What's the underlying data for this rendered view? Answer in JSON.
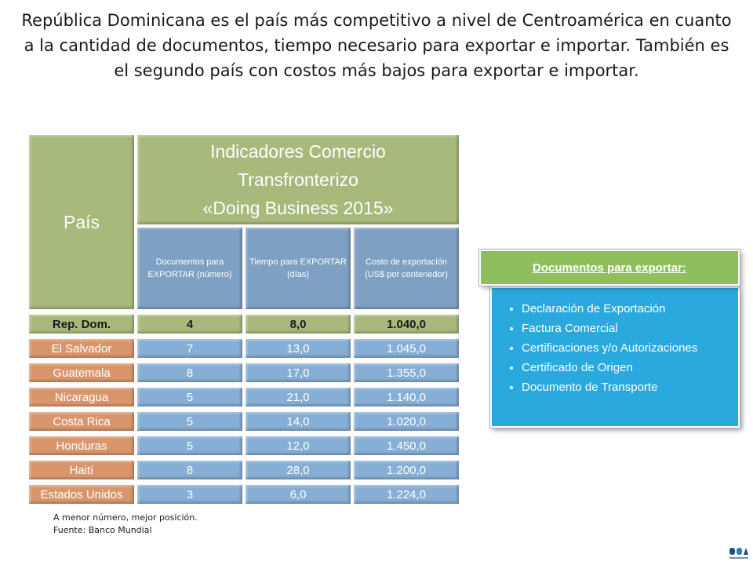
{
  "headline": "República Dominicana es el país más competitivo a nivel de Centroamérica en cuanto a la cantidad de documentos, tiempo necesario para exportar e importar.  También es el segundo país con costos más bajos para exportar e importar.",
  "table": {
    "country_header": "País",
    "group_header": [
      "Indicadores Comercio",
      "Transfronterizo",
      "«Doing Business 2015»"
    ],
    "sub_headers": [
      "Documentos para EXPORTAR (número)",
      "Tiempo para EXPORTAR (días)",
      "Costo de exportación (US$ por contenedor)"
    ],
    "rows": [
      {
        "country": "Rep. Dom.",
        "docs": "4",
        "time": "8,0",
        "cost": "1.040,0"
      },
      {
        "country": "El Salvador",
        "docs": "7",
        "time": "13,0",
        "cost": "1.045,0"
      },
      {
        "country": "Guatemala",
        "docs": "8",
        "time": "17,0",
        "cost": "1.355,0"
      },
      {
        "country": "Nicaragua",
        "docs": "5",
        "time": "21,0",
        "cost": "1.140,0"
      },
      {
        "country": "Costa Rica",
        "docs": "5",
        "time": "14,0",
        "cost": "1.020,0"
      },
      {
        "country": "Honduras",
        "docs": "5",
        "time": "12,0",
        "cost": "1.450,0"
      },
      {
        "country": "Haití",
        "docs": "8",
        "time": "28,0",
        "cost": "1.200,0"
      },
      {
        "country": "Estados Unidos",
        "docs": "3",
        "time": "6,0",
        "cost": "1.224,0"
      }
    ]
  },
  "notes": {
    "line1": "A menor número, mejor posición.",
    "line2": "Fuente: Banco Mundial"
  },
  "documents_panel": {
    "title": "Documentos para exportar:",
    "items": [
      "Declaración de Exportación",
      "Factura Comercial",
      "Certificaciones  y/o Autorizaciones",
      "Certificado de Origen",
      "Documento de Transporte"
    ]
  },
  "logo": {
    "icon": "dga-logo-icon"
  },
  "colors": {
    "green": "#a8b97c",
    "blue": "#87aed4",
    "orange": "#d9966c",
    "panel_blue": "#2aa9df",
    "panel_green": "#8fbf5c"
  }
}
